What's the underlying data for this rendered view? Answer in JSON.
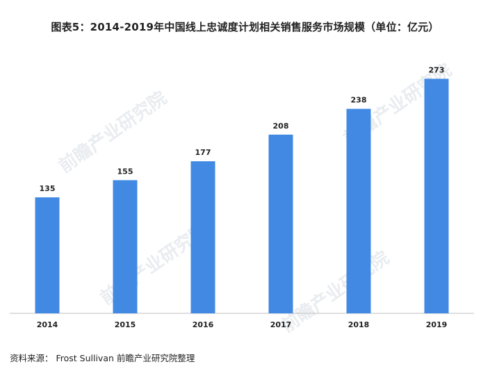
{
  "chart_data": {
    "type": "bar",
    "title": "图表5：2014-2019年中国线上忠诚度计划相关销售服务市场规模（单位：亿元）",
    "categories": [
      "2014",
      "2015",
      "2016",
      "2017",
      "2018",
      "2019"
    ],
    "values": [
      135,
      155,
      177,
      208,
      238,
      273
    ],
    "ylim": [
      0,
      300
    ],
    "bar_color": "#4189e3",
    "grid": false,
    "data_labels": true
  },
  "source": "资料来源： Frost Sullivan  前瞻产业研究院整理",
  "watermark": "前瞻产业研究院"
}
